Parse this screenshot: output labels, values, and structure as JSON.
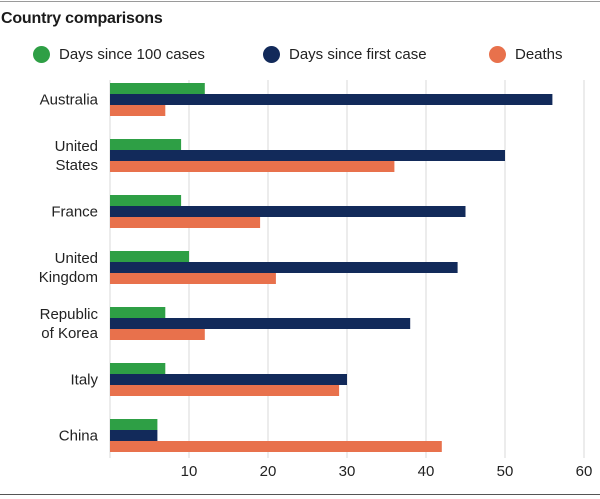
{
  "title": "Country comparisons",
  "colors": {
    "green": "#2e9f45",
    "navy": "#122a5a",
    "orange": "#e8714c",
    "grid": "#d9d9d9",
    "axis": "#555555"
  },
  "legend": [
    {
      "label": "Days since 100 cases",
      "color": "#2e9f45"
    },
    {
      "label": "Days since first case",
      "color": "#122a5a"
    },
    {
      "label": "Deaths",
      "color": "#e8714c"
    }
  ],
  "chart_data": {
    "type": "bar",
    "orientation": "horizontal",
    "title": "Country comparisons",
    "categories": [
      [
        "Australia"
      ],
      [
        "United",
        "States"
      ],
      [
        "France"
      ],
      [
        "United",
        "Kingdom"
      ],
      [
        "Republic",
        "of Korea"
      ],
      [
        "Italy"
      ],
      [
        "China"
      ]
    ],
    "series": [
      {
        "name": "Days since 100 cases",
        "color": "#2e9f45",
        "values": [
          12,
          9,
          9,
          10,
          7,
          7,
          6
        ]
      },
      {
        "name": "Days since first case",
        "color": "#122a5a",
        "values": [
          56,
          50,
          45,
          44,
          38,
          30,
          6
        ]
      },
      {
        "name": "Deaths",
        "color": "#e8714c",
        "values": [
          7,
          36,
          19,
          21,
          12,
          29,
          42
        ]
      }
    ],
    "xlim": [
      0,
      60
    ],
    "xticks": [
      10,
      20,
      30,
      40,
      50,
      60
    ],
    "grid": true,
    "legend_position": "top"
  }
}
